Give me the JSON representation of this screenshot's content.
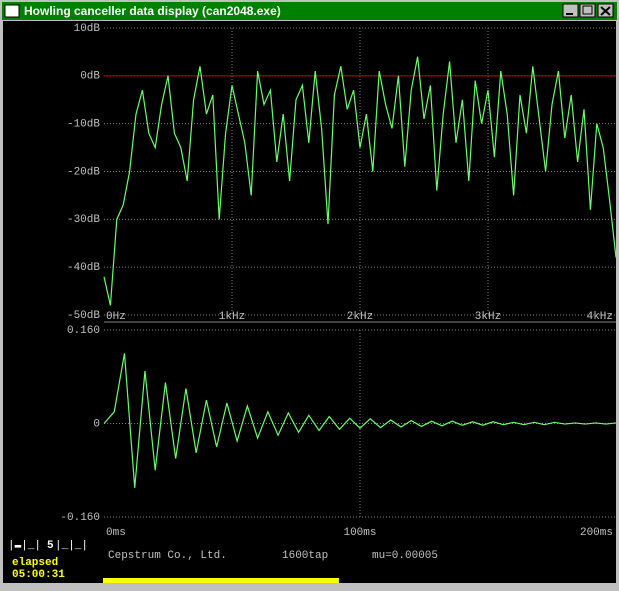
{
  "window": {
    "title": "Howling canceller data display (can2048.exe)"
  },
  "chart_data": [
    {
      "type": "line",
      "xlim": [
        0,
        4000
      ],
      "ylim": [
        -50,
        10
      ],
      "xticks": [
        {
          "value": 0,
          "label": "0Hz"
        },
        {
          "value": 1000,
          "label": "1kHz"
        },
        {
          "value": 2000,
          "label": "2kHz"
        },
        {
          "value": 3000,
          "label": "3kHz"
        },
        {
          "value": 4000,
          "label": "4kHz"
        }
      ],
      "yticks": [
        {
          "value": 10,
          "label": "10dB"
        },
        {
          "value": 0,
          "label": "0dB"
        },
        {
          "value": -10,
          "label": "-10dB"
        },
        {
          "value": -20,
          "label": "-20dB"
        },
        {
          "value": -30,
          "label": "-30dB"
        },
        {
          "value": -40,
          "label": "-40dB"
        },
        {
          "value": -50,
          "label": "-50dB"
        }
      ],
      "grid": true,
      "reference_line": {
        "value": 0,
        "color": "#c00000"
      },
      "series": [
        {
          "color": "#66ff66",
          "x": [
            0,
            50,
            100,
            150,
            200,
            250,
            300,
            350,
            400,
            450,
            500,
            550,
            600,
            650,
            700,
            750,
            800,
            850,
            900,
            950,
            1000,
            1050,
            1100,
            1150,
            1200,
            1250,
            1300,
            1350,
            1400,
            1450,
            1500,
            1550,
            1600,
            1650,
            1700,
            1750,
            1800,
            1850,
            1900,
            1950,
            2000,
            2050,
            2100,
            2150,
            2200,
            2250,
            2300,
            2350,
            2400,
            2450,
            2500,
            2550,
            2600,
            2650,
            2700,
            2750,
            2800,
            2850,
            2900,
            2950,
            3000,
            3050,
            3100,
            3150,
            3200,
            3250,
            3300,
            3350,
            3400,
            3450,
            3500,
            3550,
            3600,
            3650,
            3700,
            3750,
            3800,
            3850,
            3900,
            3950,
            4000
          ],
          "values": [
            -42,
            -48,
            -30,
            -27,
            -20,
            -8,
            -3,
            -12,
            -15,
            -6,
            0,
            -12,
            -15,
            -22,
            -5,
            2,
            -8,
            -4,
            -30,
            -12,
            -2,
            -8,
            -14,
            -25,
            1,
            -6,
            -3,
            -18,
            -8,
            -22,
            -5,
            -2,
            -14,
            1,
            -11,
            -31,
            -4,
            2,
            -7,
            -3,
            -15,
            -8,
            -20,
            1,
            -6,
            -11,
            0,
            -19,
            -3,
            4,
            -9,
            -2,
            -24,
            -8,
            3,
            -14,
            -5,
            -22,
            -1,
            -10,
            -3,
            -17,
            1,
            -8,
            -25,
            -4,
            -12,
            2,
            -9,
            -20,
            -6,
            1,
            -13,
            -4,
            -18,
            -7,
            -28,
            -10,
            -15,
            -26,
            -38
          ]
        }
      ]
    },
    {
      "type": "line",
      "xlim": [
        0,
        200
      ],
      "ylim": [
        -0.16,
        0.16
      ],
      "xticks": [
        {
          "value": 0,
          "label": "0ms"
        },
        {
          "value": 100,
          "label": "100ms"
        },
        {
          "value": 200,
          "label": "200ms"
        }
      ],
      "yticks": [
        {
          "value": 0.16,
          "label": "0.160"
        },
        0,
        {
          "value": -0.16,
          "label": "-0.160"
        }
      ],
      "grid": true,
      "series": [
        {
          "color": "#66ff66",
          "x": [
            0,
            4,
            8,
            12,
            16,
            20,
            24,
            28,
            32,
            36,
            40,
            44,
            48,
            52,
            56,
            60,
            64,
            68,
            72,
            76,
            80,
            84,
            88,
            92,
            96,
            100,
            104,
            108,
            112,
            116,
            120,
            124,
            128,
            132,
            136,
            140,
            144,
            148,
            152,
            156,
            160,
            164,
            168,
            172,
            176,
            180,
            184,
            188,
            192,
            196,
            200
          ],
          "values": [
            0,
            0.02,
            0.12,
            -0.11,
            0.09,
            -0.08,
            0.07,
            -0.06,
            0.06,
            -0.05,
            0.04,
            -0.04,
            0.035,
            -0.03,
            0.03,
            -0.025,
            0.02,
            -0.02,
            0.018,
            -0.015,
            0.014,
            -0.012,
            0.012,
            -0.01,
            0.009,
            -0.008,
            0.008,
            -0.007,
            0.006,
            -0.006,
            0.005,
            -0.005,
            0.004,
            -0.004,
            0.004,
            -0.003,
            0.003,
            -0.003,
            0.003,
            -0.002,
            0.002,
            -0.002,
            0.002,
            -0.002,
            0.002,
            -0.001,
            0.001,
            -0.001,
            0.001,
            -0.001,
            0.001
          ]
        }
      ]
    }
  ],
  "status": {
    "counter": "5",
    "elapsed_label": "elapsed",
    "elapsed": "05:00:31",
    "company": "Cepstrum Co., Ltd.",
    "taps": "1600tap",
    "mu": "mu=0.00005",
    "progress": 0.46
  }
}
